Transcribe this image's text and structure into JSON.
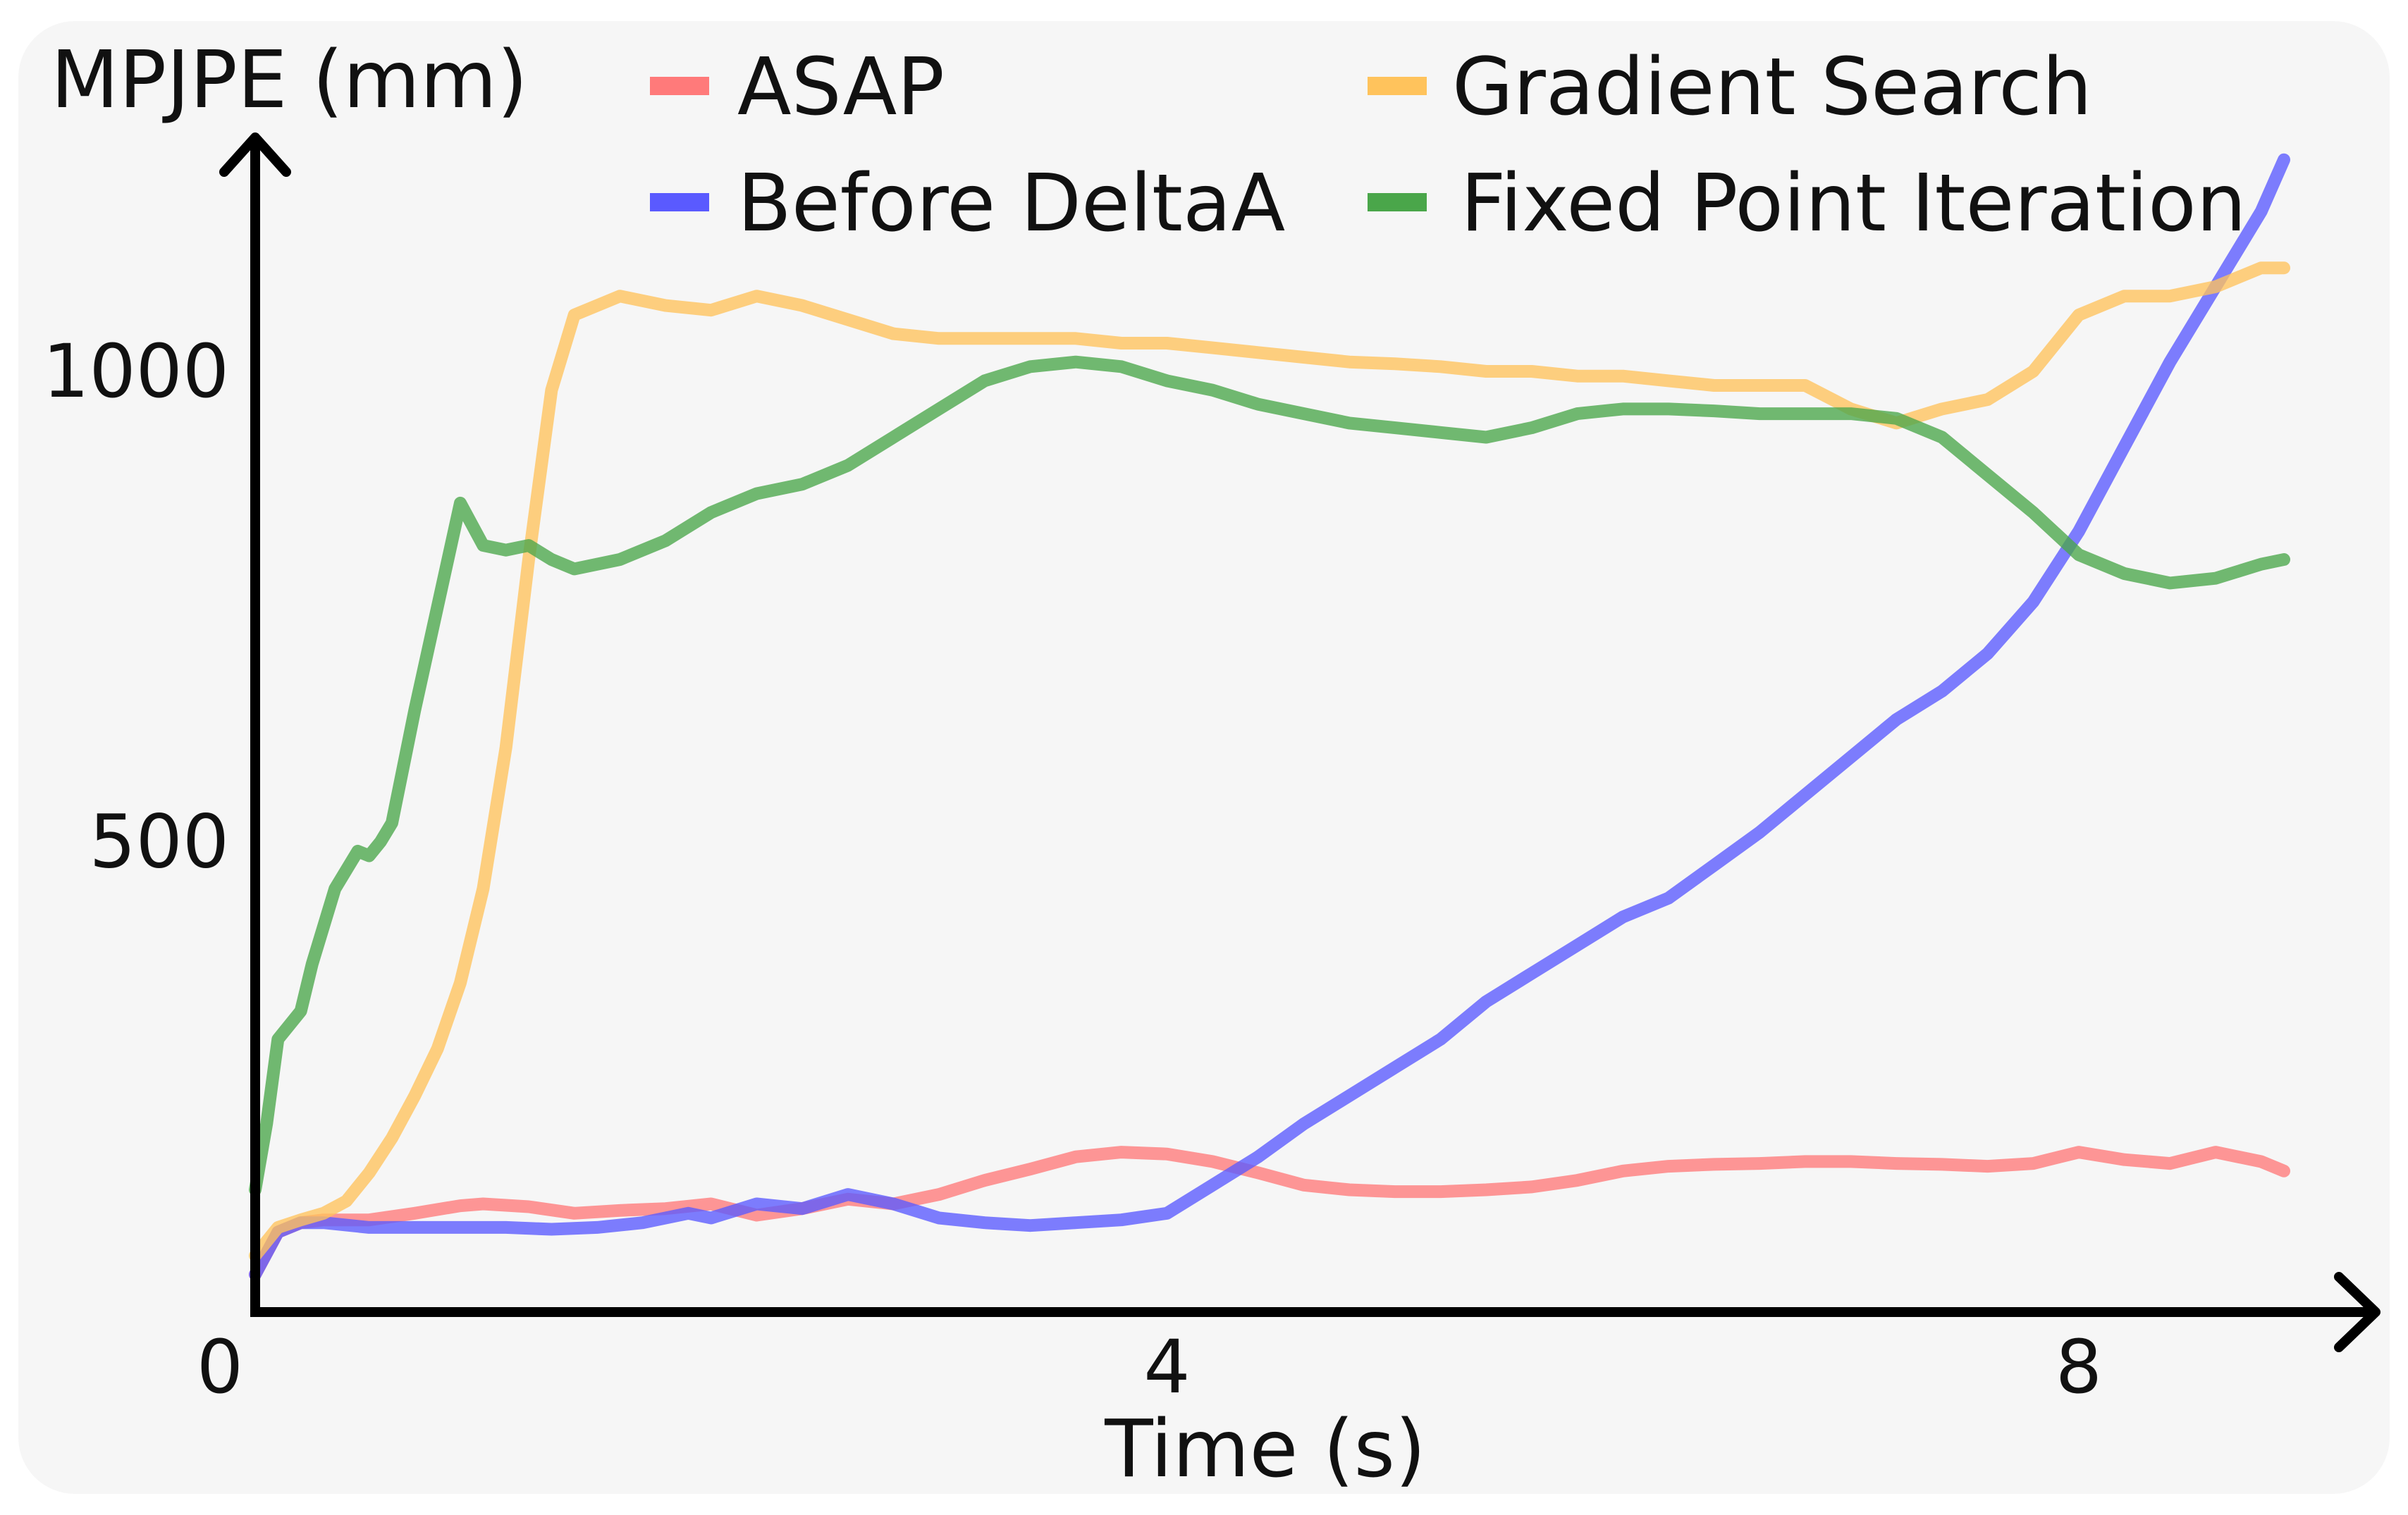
{
  "chart_data": {
    "type": "line",
    "ylabel": "MPJPE (mm)",
    "xlabel": "Time (s)",
    "xlim": [
      0,
      8.9
    ],
    "ylim": [
      0,
      1215
    ],
    "xticks": [
      0,
      4,
      8
    ],
    "xtick_labels": [
      "0",
      "4",
      "8"
    ],
    "yticks": [
      500,
      1000
    ],
    "ytick_labels": [
      "500",
      "1000"
    ],
    "grid": false,
    "legend_position": "top",
    "series": [
      {
        "name": "ASAP",
        "color": "#ff7a7a",
        "x": [
          0,
          0.1,
          0.2,
          0.3,
          0.5,
          0.7,
          0.9,
          1.0,
          1.2,
          1.4,
          1.6,
          1.8,
          2.0,
          2.2,
          2.4,
          2.6,
          2.8,
          3.0,
          3.2,
          3.4,
          3.6,
          3.8,
          4.0,
          4.2,
          4.4,
          4.6,
          4.8,
          5.0,
          5.2,
          5.4,
          5.6,
          5.8,
          6.0,
          6.2,
          6.4,
          6.6,
          6.8,
          7.0,
          7.2,
          7.4,
          7.6,
          7.8,
          8.0,
          8.2,
          8.4,
          8.6,
          8.8,
          8.9
        ],
        "values": [
          40,
          85,
          95,
          98,
          98,
          105,
          113,
          115,
          112,
          105,
          108,
          110,
          115,
          103,
          110,
          120,
          115,
          125,
          140,
          152,
          165,
          170,
          168,
          160,
          148,
          135,
          130,
          128,
          128,
          130,
          133,
          140,
          150,
          155,
          157,
          158,
          160,
          160,
          158,
          157,
          155,
          158,
          170,
          162,
          158,
          170,
          160,
          150
        ]
      },
      {
        "name": "Before DeltaA",
        "color": "#5a5aff",
        "x": [
          0,
          0.1,
          0.2,
          0.3,
          0.5,
          0.7,
          0.9,
          1.1,
          1.3,
          1.5,
          1.7,
          1.9,
          2.0,
          2.2,
          2.4,
          2.6,
          2.8,
          3.0,
          3.2,
          3.4,
          3.6,
          3.8,
          4.0,
          4.2,
          4.4,
          4.6,
          4.8,
          5.0,
          5.2,
          5.4,
          5.6,
          5.8,
          6.0,
          6.2,
          6.4,
          6.6,
          6.8,
          7.0,
          7.2,
          7.4,
          7.6,
          7.8,
          8.0,
          8.2,
          8.4,
          8.6,
          8.8,
          8.9
        ],
        "values": [
          40,
          85,
          95,
          95,
          90,
          90,
          90,
          90,
          88,
          90,
          95,
          105,
          100,
          115,
          110,
          125,
          115,
          100,
          95,
          92,
          95,
          98,
          105,
          135,
          165,
          200,
          230,
          260,
          290,
          330,
          360,
          390,
          420,
          440,
          475,
          510,
          550,
          590,
          630,
          660,
          700,
          755,
          830,
          920,
          1010,
          1090,
          1170,
          1225
        ]
      },
      {
        "name": "Gradient Search",
        "color": "#ffc35c",
        "x": [
          0,
          0.1,
          0.2,
          0.3,
          0.4,
          0.5,
          0.6,
          0.7,
          0.8,
          0.9,
          1.0,
          1.1,
          1.2,
          1.3,
          1.4,
          1.5,
          1.6,
          1.8,
          2.0,
          2.2,
          2.4,
          2.6,
          2.8,
          3.0,
          3.2,
          3.4,
          3.6,
          3.8,
          4.0,
          4.2,
          4.4,
          4.6,
          4.8,
          5.0,
          5.2,
          5.4,
          5.6,
          5.8,
          6.0,
          6.2,
          6.4,
          6.6,
          6.8,
          7.0,
          7.2,
          7.4,
          7.6,
          7.8,
          7.9,
          8.0,
          8.1,
          8.2,
          8.4,
          8.6,
          8.8,
          8.9
        ],
        "values": [
          60,
          90,
          98,
          105,
          118,
          148,
          185,
          230,
          280,
          350,
          450,
          600,
          800,
          980,
          1060,
          1070,
          1080,
          1070,
          1065,
          1080,
          1070,
          1055,
          1040,
          1035,
          1035,
          1035,
          1035,
          1030,
          1030,
          1025,
          1020,
          1015,
          1010,
          1008,
          1005,
          1000,
          1000,
          995,
          995,
          990,
          985,
          985,
          985,
          960,
          945,
          960,
          970,
          1000,
          1030,
          1060,
          1070,
          1080,
          1080,
          1090,
          1110,
          1110
        ]
      },
      {
        "name": "Fixed Point Iteration",
        "color": "#4aa64a",
        "x": [
          0,
          0.05,
          0.1,
          0.2,
          0.25,
          0.35,
          0.45,
          0.5,
          0.55,
          0.6,
          0.7,
          0.8,
          0.9,
          1.0,
          1.1,
          1.2,
          1.3,
          1.4,
          1.6,
          1.8,
          2.0,
          2.2,
          2.4,
          2.6,
          2.8,
          3.0,
          3.2,
          3.4,
          3.6,
          3.8,
          4.0,
          4.2,
          4.4,
          4.6,
          4.8,
          5.0,
          5.2,
          5.4,
          5.6,
          5.8,
          6.0,
          6.2,
          6.4,
          6.6,
          6.8,
          7.0,
          7.2,
          7.4,
          7.6,
          7.8,
          8.0,
          8.2,
          8.4,
          8.6,
          8.8,
          8.9
        ],
        "values": [
          130,
          200,
          290,
          320,
          370,
          450,
          490,
          485,
          500,
          520,
          640,
          750,
          860,
          815,
          810,
          815,
          800,
          790,
          800,
          820,
          850,
          870,
          880,
          900,
          930,
          960,
          990,
          1005,
          1010,
          1005,
          990,
          980,
          965,
          955,
          945,
          940,
          935,
          930,
          940,
          955,
          960,
          960,
          958,
          955,
          955,
          955,
          950,
          930,
          890,
          850,
          805,
          785,
          775,
          780,
          795,
          800
        ]
      }
    ]
  }
}
